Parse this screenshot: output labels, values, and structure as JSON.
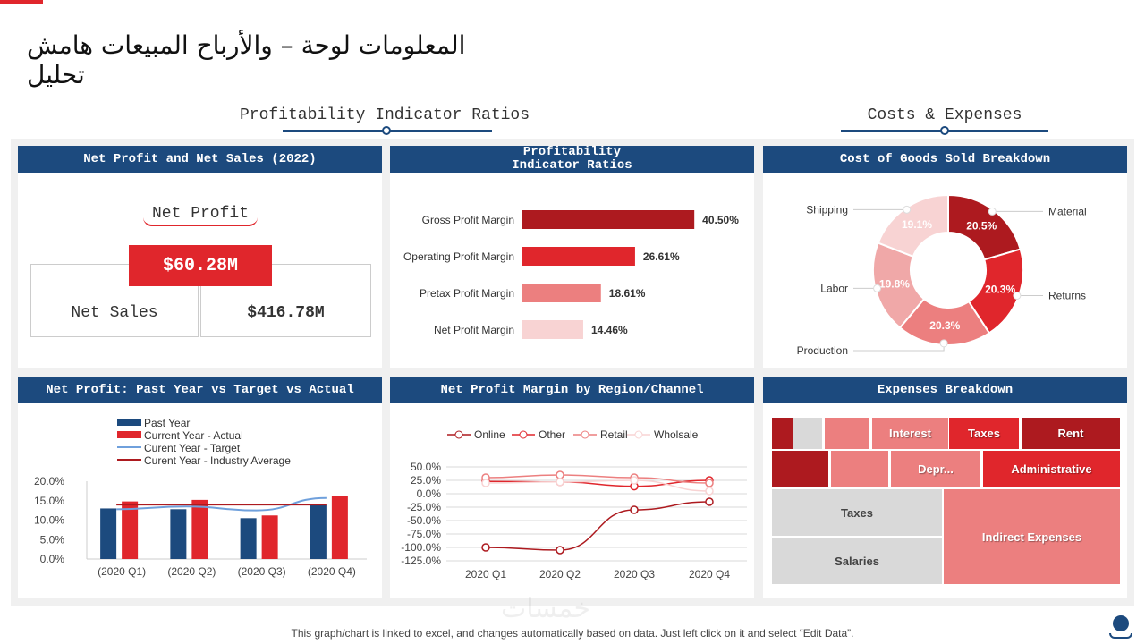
{
  "page": {
    "title": "المعلومات لوحة – والأرباح المبيعات هامش تحليل",
    "section_left": "Profitability Indicator Ratios",
    "section_right": "Costs & Expenses",
    "footer": "This graph/chart is linked to excel, and changes automatically based on data. Just left click on it and select “Edit Data”.",
    "watermark": "خمسات"
  },
  "colors": {
    "navy": "#1c4a7e",
    "dark_red": "#ad1a1f",
    "red": "#e0262c",
    "salmon": "#ec7f7f",
    "pink": "#f8d3d3",
    "gray": "#d9d9d9"
  },
  "net_profit_panel": {
    "header": "Net Profit and Net Sales (2022)",
    "net_profit_label": "Net Profit",
    "net_profit_value": "$60.28M",
    "net_sales_label": "Net Sales",
    "net_sales_value": "$416.78M"
  },
  "chart_data": [
    {
      "id": "ratios",
      "type": "bar",
      "orientation": "horizontal",
      "title": "Profitability Indicator Ratios",
      "categories": [
        "Gross Profit Margin",
        "Operating Profit Margin",
        "Pretax Profit Margin",
        "Net Profit Margin"
      ],
      "values": [
        40.5,
        26.61,
        18.61,
        14.46
      ],
      "labels": [
        "40.50%",
        "26.61%",
        "18.61%",
        "14.46%"
      ],
      "colors": [
        "#ad1a1f",
        "#e0262c",
        "#ec7f7f",
        "#f8d3d3"
      ]
    },
    {
      "id": "cogs",
      "type": "pie",
      "title": "Cost of Goods Sold Breakdown",
      "donut": true,
      "categories": [
        "Material",
        "Returns",
        "Production",
        "Labor",
        "Shipping"
      ],
      "values": [
        20.5,
        20.3,
        20.3,
        19.8,
        19.1
      ],
      "labels": [
        "20.5%",
        "20.3%",
        "20.3%",
        "19.8%",
        "19.1%"
      ],
      "colors": [
        "#ad1a1f",
        "#e0262c",
        "#ec7f7f",
        "#f0a8a8",
        "#f8d3d3"
      ]
    },
    {
      "id": "np_quarters",
      "type": "bar",
      "title": "Net Profit: Past Year vs Target vs Actual",
      "categories": [
        "(2020 Q1)",
        "(2020 Q2)",
        "(2020 Q3)",
        "(2020 Q4)"
      ],
      "ylim": [
        0,
        20
      ],
      "yticks": [
        "0.0%",
        "5.0%",
        "10.0%",
        "15.0%",
        "20.0%"
      ],
      "legend": "top",
      "series": [
        {
          "name": "Past Year",
          "kind": "bar",
          "color": "#1c4a7e",
          "values": [
            13.0,
            12.8,
            10.5,
            13.8
          ]
        },
        {
          "name": "Current Year - Actual",
          "kind": "bar",
          "color": "#e0262c",
          "values": [
            14.8,
            15.2,
            11.2,
            16.1
          ]
        },
        {
          "name": "Curent Year - Target",
          "kind": "line",
          "color": "#6fa0dc",
          "values": [
            12.8,
            13.5,
            12.5,
            15.7
          ]
        },
        {
          "name": "Curent Year - Industry Average",
          "kind": "line",
          "color": "#ad1a1f",
          "values": [
            14.0,
            14.0,
            14.0,
            14.0
          ]
        }
      ]
    },
    {
      "id": "npm_region",
      "type": "line",
      "title": "Net Profit Margin by Region/Channel",
      "categories": [
        "2020 Q1",
        "2020 Q2",
        "2020 Q3",
        "2020 Q4"
      ],
      "ylim": [
        -125,
        50
      ],
      "yticks": [
        "50.0%",
        "25.0%",
        "0.0%",
        "-25.0%",
        "-50.0%",
        "-75.0%",
        "-100.0%",
        "-125.0%"
      ],
      "grid": true,
      "legend": "top",
      "series": [
        {
          "name": "Online",
          "color": "#ad1a1f",
          "values": [
            -100,
            -105,
            -30,
            -15
          ]
        },
        {
          "name": "Other",
          "color": "#e0262c",
          "values": [
            23,
            22,
            14,
            25
          ]
        },
        {
          "name": "Retail",
          "color": "#ec7f7f",
          "values": [
            30,
            35,
            30,
            20
          ]
        },
        {
          "name": "Wholsale",
          "color": "#f8d3d3",
          "values": [
            20,
            22,
            25,
            5
          ]
        }
      ]
    },
    {
      "id": "expenses",
      "type": "treemap",
      "title": "Expenses Breakdown",
      "cells": [
        {
          "label": "",
          "color": "#ad1a1f"
        },
        {
          "label": "",
          "color": "#d9d9d9"
        },
        {
          "label": "",
          "color": "#ec7f7f"
        },
        {
          "label": "Interest",
          "color": "#ec7f7f"
        },
        {
          "label": "Taxes",
          "color": "#e0262c"
        },
        {
          "label": "Rent",
          "color": "#ad1a1f"
        },
        {
          "label": "",
          "color": "#ad1a1f"
        },
        {
          "label": "",
          "color": "#ec7f7f"
        },
        {
          "label": "Depr...",
          "color": "#ec7f7f"
        },
        {
          "label": "Administrative",
          "color": "#e0262c"
        },
        {
          "label": "Taxes",
          "color": "#d9d9d9"
        },
        {
          "label": "Salaries",
          "color": "#d9d9d9"
        },
        {
          "label": "Indirect Expenses",
          "color": "#ec7f7f"
        }
      ]
    }
  ]
}
